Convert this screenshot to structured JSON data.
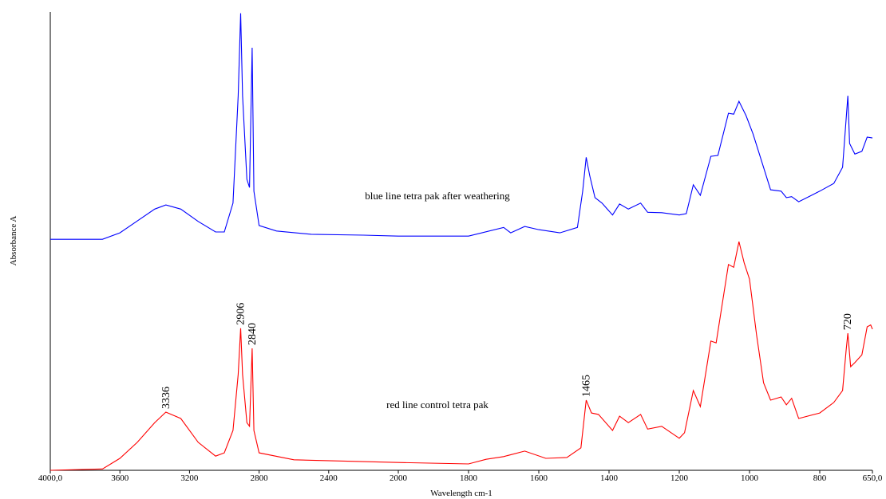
{
  "chart_data": {
    "type": "line",
    "x_label": "Wavelength cm-1",
    "y_label": "Absorbance A",
    "xlim": [
      4000,
      650
    ],
    "x_scale_change": 2000,
    "ylim": [
      0,
      1
    ],
    "xticks": [
      {
        "value": 4000,
        "label": "4000,0"
      },
      3600,
      3200,
      2800,
      2400,
      2000,
      1800,
      1600,
      1400,
      1200,
      1000,
      800,
      {
        "value": 650,
        "label": "650,0"
      }
    ],
    "annotations": [
      "blue line tetra pak after weathering",
      "red line control tetra pak"
    ],
    "peak_labels": [
      {
        "x": 3336,
        "label": "3336"
      },
      {
        "x": 2906,
        "label": "2906"
      },
      {
        "x": 2840,
        "label": "2840"
      },
      {
        "x": 1465,
        "label": "1465"
      },
      {
        "x": 720,
        "label": "720"
      }
    ],
    "series": [
      {
        "color": "#0000ff",
        "x": [
          4000,
          3800,
          3700,
          3600,
          3500,
          3400,
          3336,
          3250,
          3150,
          3050,
          3000,
          2950,
          2920,
          2906,
          2895,
          2870,
          2855,
          2840,
          2830,
          2800,
          2700,
          2500,
          2200,
          2000,
          1800,
          1700,
          1680,
          1640,
          1600,
          1540,
          1490,
          1475,
          1465,
          1455,
          1440,
          1420,
          1390,
          1370,
          1345,
          1310,
          1290,
          1250,
          1200,
          1180,
          1160,
          1140,
          1110,
          1090,
          1060,
          1045,
          1030,
          1010,
          990,
          960,
          940,
          910,
          895,
          880,
          860,
          800,
          760,
          735,
          725,
          720,
          715,
          700,
          680,
          665,
          650
        ],
        "values": [
          0.504,
          0.504,
          0.504,
          0.518,
          0.544,
          0.57,
          0.579,
          0.57,
          0.543,
          0.52,
          0.52,
          0.583,
          0.817,
          0.997,
          0.817,
          0.635,
          0.617,
          0.922,
          0.609,
          0.534,
          0.522,
          0.515,
          0.513,
          0.511,
          0.511,
          0.53,
          0.518,
          0.532,
          0.525,
          0.518,
          0.53,
          0.609,
          0.683,
          0.643,
          0.595,
          0.583,
          0.557,
          0.581,
          0.57,
          0.583,
          0.563,
          0.562,
          0.557,
          0.56,
          0.623,
          0.6,
          0.685,
          0.687,
          0.779,
          0.777,
          0.805,
          0.774,
          0.734,
          0.661,
          0.612,
          0.609,
          0.595,
          0.597,
          0.586,
          0.609,
          0.626,
          0.661,
          0.765,
          0.817,
          0.713,
          0.69,
          0.696,
          0.727,
          0.725
        ]
      },
      {
        "color": "#ff0000",
        "x": [
          4000,
          3700,
          3600,
          3500,
          3400,
          3336,
          3250,
          3150,
          3050,
          3000,
          2950,
          2920,
          2906,
          2895,
          2870,
          2855,
          2840,
          2830,
          2800,
          2600,
          2200,
          2000,
          1800,
          1750,
          1700,
          1640,
          1580,
          1520,
          1480,
          1465,
          1450,
          1430,
          1390,
          1370,
          1345,
          1310,
          1290,
          1250,
          1200,
          1185,
          1160,
          1140,
          1110,
          1095,
          1060,
          1045,
          1030,
          1015,
          1000,
          980,
          960,
          940,
          910,
          895,
          880,
          860,
          800,
          760,
          735,
          725,
          720,
          712,
          700,
          680,
          665,
          655,
          650
        ],
        "values": [
          0,
          0.003,
          0.026,
          0.061,
          0.104,
          0.127,
          0.113,
          0.061,
          0.031,
          0.038,
          0.087,
          0.209,
          0.31,
          0.209,
          0.104,
          0.096,
          0.266,
          0.087,
          0.038,
          0.023,
          0.019,
          0.017,
          0.014,
          0.024,
          0.03,
          0.042,
          0.026,
          0.028,
          0.049,
          0.153,
          0.125,
          0.122,
          0.087,
          0.118,
          0.104,
          0.122,
          0.09,
          0.096,
          0.07,
          0.082,
          0.174,
          0.139,
          0.282,
          0.278,
          0.449,
          0.443,
          0.499,
          0.452,
          0.417,
          0.296,
          0.191,
          0.153,
          0.16,
          0.143,
          0.157,
          0.113,
          0.125,
          0.148,
          0.174,
          0.261,
          0.299,
          0.226,
          0.235,
          0.252,
          0.313,
          0.317,
          0.308
        ]
      }
    ]
  }
}
